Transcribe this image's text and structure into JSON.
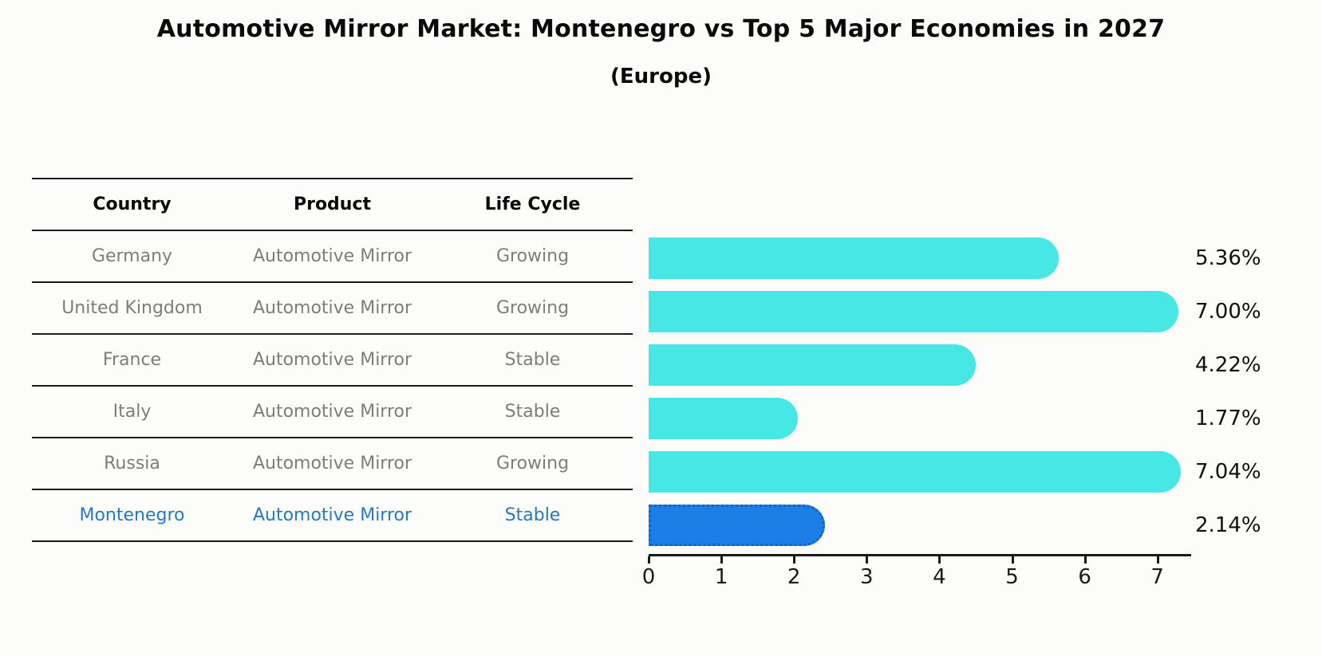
{
  "page": {
    "title": "Automotive Mirror Market: Montenegro vs Top 5 Major Economies in 2027",
    "subtitle": "(Europe)"
  },
  "table": {
    "headers": [
      "Country",
      "Product",
      "Life Cycle"
    ],
    "rows": [
      {
        "country": "Germany",
        "product": "Automotive Mirror",
        "life_cycle": "Growing",
        "highlight": false
      },
      {
        "country": "United Kingdom",
        "product": "Automotive Mirror",
        "life_cycle": "Growing",
        "highlight": false
      },
      {
        "country": "France",
        "product": "Automotive Mirror",
        "life_cycle": "Stable",
        "highlight": false
      },
      {
        "country": "Italy",
        "product": "Automotive Mirror",
        "life_cycle": "Stable",
        "highlight": false
      },
      {
        "country": "Russia",
        "product": "Automotive Mirror",
        "life_cycle": "Growing",
        "highlight": false
      },
      {
        "country": "Montenegro",
        "product": "Automotive Mirror",
        "life_cycle": "Stable",
        "highlight": true
      }
    ]
  },
  "chart_data": {
    "type": "bar",
    "orientation": "horizontal",
    "title": "Automotive Mirror Market: Montenegro vs Top 5 Major Economies in 2027",
    "subtitle": "(Europe)",
    "categories": [
      "Germany",
      "United Kingdom",
      "France",
      "Italy",
      "Russia",
      "Montenegro"
    ],
    "values": [
      5.36,
      7.0,
      4.22,
      1.77,
      7.04,
      2.14
    ],
    "value_labels": [
      "5.36%",
      "7.00%",
      "4.22%",
      "1.77%",
      "7.04%",
      "2.14%"
    ],
    "unit": "percent",
    "x_ticks": [
      0,
      1,
      2,
      3,
      4,
      5,
      6,
      7
    ],
    "xlim": [
      0,
      7.45
    ],
    "grid": false,
    "legend": "none",
    "highlight_category": "Montenegro",
    "colors": {
      "bar": "#46e7e4",
      "highlight_bar": "#1c7fe8",
      "highlight_border": "#1262cc",
      "axis": "#1a1a1a",
      "row_text": "#7d7d7d",
      "highlight_text": "#2878c8",
      "value_label": "#101010"
    }
  }
}
